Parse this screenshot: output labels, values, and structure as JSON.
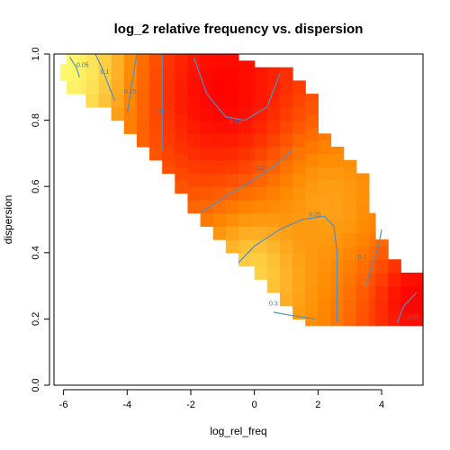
{
  "chart_data": {
    "type": "heatmap",
    "title": "log_2 relative frequency vs. dispersion",
    "xlabel": "log_rel_freq",
    "ylabel": "dispersion",
    "xlim": [
      -6.3,
      5.3
    ],
    "ylim": [
      0.0,
      1.0
    ],
    "xticks": [
      "-6",
      "-4",
      "-2",
      "0",
      "2",
      "4"
    ],
    "yticks": [
      "0.0",
      "0.2",
      "0.4",
      "0.6",
      "0.8",
      "1.0"
    ],
    "grid": false,
    "legend": "none",
    "colormap": "heat (yellow = low, red = high)",
    "colors": {
      "low": "#ffff66",
      "high": "#ff0000",
      "contour": "#4f8fc8"
    },
    "cell_size": {
      "x": 0.4,
      "y": 0.04
    },
    "data_region": {
      "description": "cells present between upper and lower dispersion bounds per x column",
      "columns": [
        {
          "x0": -6.1,
          "x1": -5.9,
          "ymin": 0.92,
          "ymax": 0.97
        },
        {
          "x0": -5.9,
          "x1": -5.3,
          "ymin": 0.88,
          "ymax": 1.0
        },
        {
          "x0": -5.3,
          "x1": -4.5,
          "ymin": 0.84,
          "ymax": 1.0
        },
        {
          "x0": -4.5,
          "x1": -4.1,
          "ymin": 0.8,
          "ymax": 1.0
        },
        {
          "x0": -4.1,
          "x1": -3.7,
          "ymin": 0.76,
          "ymax": 1.0
        },
        {
          "x0": -3.7,
          "x1": -3.3,
          "ymin": 0.72,
          "ymax": 1.0
        },
        {
          "x0": -3.3,
          "x1": -2.9,
          "ymin": 0.68,
          "ymax": 1.0
        },
        {
          "x0": -2.9,
          "x1": -2.5,
          "ymin": 0.64,
          "ymax": 1.0
        },
        {
          "x0": -2.5,
          "x1": -2.1,
          "ymin": 0.58,
          "ymax": 1.0
        },
        {
          "x0": -2.1,
          "x1": -1.7,
          "ymin": 0.52,
          "ymax": 1.0
        },
        {
          "x0": -1.7,
          "x1": -1.3,
          "ymin": 0.48,
          "ymax": 1.0
        },
        {
          "x0": -1.3,
          "x1": -0.9,
          "ymin": 0.44,
          "ymax": 1.0
        },
        {
          "x0": -0.9,
          "x1": -0.5,
          "ymin": 0.4,
          "ymax": 1.0
        },
        {
          "x0": -0.5,
          "x1": 0.0,
          "ymin": 0.36,
          "ymax": 0.98
        },
        {
          "x0": 0.0,
          "x1": 0.4,
          "ymin": 0.32,
          "ymax": 0.96
        },
        {
          "x0": 0.4,
          "x1": 0.8,
          "ymin": 0.28,
          "ymax": 0.96
        },
        {
          "x0": 0.8,
          "x1": 1.2,
          "ymin": 0.24,
          "ymax": 0.96
        },
        {
          "x0": 1.2,
          "x1": 1.6,
          "ymin": 0.2,
          "ymax": 0.92
        },
        {
          "x0": 1.6,
          "x1": 2.0,
          "ymin": 0.18,
          "ymax": 0.88
        },
        {
          "x0": 2.0,
          "x1": 2.4,
          "ymin": 0.18,
          "ymax": 0.76
        },
        {
          "x0": 2.4,
          "x1": 2.8,
          "ymin": 0.18,
          "ymax": 0.72
        },
        {
          "x0": 2.8,
          "x1": 3.2,
          "ymin": 0.18,
          "ymax": 0.68
        },
        {
          "x0": 3.2,
          "x1": 3.6,
          "ymin": 0.18,
          "ymax": 0.64
        },
        {
          "x0": 3.6,
          "x1": 3.8,
          "ymin": 0.18,
          "ymax": 0.52
        },
        {
          "x0": 3.8,
          "x1": 4.2,
          "ymin": 0.18,
          "ymax": 0.44
        },
        {
          "x0": 4.2,
          "x1": 4.6,
          "ymin": 0.18,
          "ymax": 0.38
        },
        {
          "x0": 4.6,
          "x1": 5.3,
          "ymin": 0.18,
          "ymax": 0.34
        }
      ]
    },
    "intensity_peaks": [
      {
        "x": -6.0,
        "y": 0.95,
        "level": 0.0,
        "spread": 1.6
      },
      {
        "x": -1.0,
        "y": 0.88,
        "level": 1.0,
        "spread": 2.0
      },
      {
        "x": 0.0,
        "y": 0.35,
        "level": 0.15,
        "spread": 1.2
      },
      {
        "x": 5.0,
        "y": 0.26,
        "level": 1.0,
        "spread": 1.0
      },
      {
        "x": 2.3,
        "y": 0.55,
        "level": 0.35,
        "spread": 1.5
      }
    ],
    "contours": [
      {
        "label": "0.05",
        "label_at": [
          -5.4,
          0.96
        ],
        "points": [
          [
            -5.8,
            0.99
          ],
          [
            -5.6,
            0.96
          ],
          [
            -5.5,
            0.93
          ]
        ]
      },
      {
        "label": "0.1",
        "label_at": [
          -4.7,
          0.94
        ],
        "points": [
          [
            -5.0,
            1.0
          ],
          [
            -4.8,
            0.96
          ],
          [
            -4.6,
            0.91
          ],
          [
            -4.4,
            0.86
          ]
        ]
      },
      {
        "label": "0.15",
        "label_at": [
          -3.9,
          0.88
        ],
        "points": [
          [
            -3.7,
            1.0
          ],
          [
            -3.8,
            0.94
          ],
          [
            -3.9,
            0.88
          ],
          [
            -4.0,
            0.82
          ]
        ]
      },
      {
        "label": "0.2",
        "label_at": [
          -2.9,
          0.82
        ],
        "points": [
          [
            -2.9,
            1.0
          ],
          [
            -2.9,
            0.9
          ],
          [
            -2.9,
            0.8
          ],
          [
            -2.9,
            0.71
          ]
        ]
      },
      {
        "label": "0.15",
        "label_at": [
          -0.6,
          0.79
        ],
        "points": [
          [
            -1.9,
            0.99
          ],
          [
            -1.5,
            0.88
          ],
          [
            -0.9,
            0.81
          ],
          [
            -0.3,
            0.8
          ],
          [
            0.4,
            0.84
          ],
          [
            0.8,
            0.94
          ]
        ]
      },
      {
        "label": "0.2",
        "label_at": [
          0.2,
          0.65
        ],
        "points": [
          [
            -1.7,
            0.52
          ],
          [
            -0.9,
            0.57
          ],
          [
            -0.2,
            0.61
          ],
          [
            0.6,
            0.66
          ],
          [
            1.2,
            0.71
          ]
        ]
      },
      {
        "label": "0.25",
        "label_at": [
          1.9,
          0.51
        ],
        "points": [
          [
            -0.5,
            0.37
          ],
          [
            0.0,
            0.42
          ],
          [
            0.8,
            0.47
          ],
          [
            1.5,
            0.5
          ],
          [
            2.2,
            0.51
          ],
          [
            2.5,
            0.48
          ],
          [
            2.6,
            0.4
          ],
          [
            2.6,
            0.19
          ]
        ]
      },
      {
        "label": "0.3",
        "label_at": [
          0.6,
          0.24
        ],
        "points": [
          [
            0.6,
            0.22
          ],
          [
            1.2,
            0.21
          ],
          [
            1.9,
            0.2
          ]
        ]
      },
      {
        "label": "0.1",
        "label_at": [
          3.4,
          0.38
        ],
        "points": [
          [
            3.5,
            0.3
          ],
          [
            3.7,
            0.36
          ],
          [
            3.9,
            0.42
          ],
          [
            4.0,
            0.47
          ]
        ]
      },
      {
        "label": "0.05",
        "label_at": [
          5.0,
          0.2
        ],
        "points": [
          [
            4.5,
            0.19
          ],
          [
            4.7,
            0.24
          ],
          [
            5.1,
            0.28
          ]
        ]
      }
    ]
  }
}
